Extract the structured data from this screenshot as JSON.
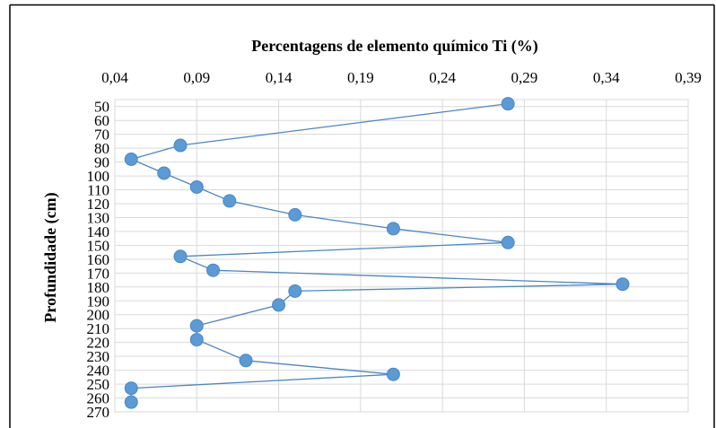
{
  "chart_data": {
    "type": "scatter",
    "title": "Percentagens de elemento químico  Ti (%)",
    "xlabel": "",
    "ylabel": "Profundidade (cm)",
    "xlim": [
      0.04,
      0.39
    ],
    "ylim": [
      270,
      45
    ],
    "x_axis_position": "top",
    "y_axis_reversed": true,
    "grid": true,
    "lines_connect_points": true,
    "series_color": "#5B9BD5",
    "line_color": "#4A86C8",
    "x_tick_labels": [
      "0,04",
      "0,09",
      "0,14",
      "0,19",
      "0,24",
      "0,29",
      "0,34",
      "0,39"
    ],
    "x_ticks": [
      0.04,
      0.09,
      0.14,
      0.19,
      0.24,
      0.29,
      0.34,
      0.39
    ],
    "y_tick_labels": [
      "50",
      "60",
      "70",
      "80",
      "90",
      "100",
      "110",
      "120",
      "130",
      "140",
      "150",
      "160",
      "170",
      "180",
      "190",
      "200",
      "210",
      "220",
      "230",
      "240",
      "250",
      "260",
      "270"
    ],
    "y_ticks": [
      50,
      60,
      70,
      80,
      90,
      100,
      110,
      120,
      130,
      140,
      150,
      160,
      170,
      180,
      190,
      200,
      210,
      220,
      230,
      240,
      250,
      260,
      270
    ],
    "series": [
      {
        "x": [
          0.28,
          0.08,
          0.05,
          0.07,
          0.09,
          0.11,
          0.15,
          0.21,
          0.28,
          0.08,
          0.1,
          0.35,
          0.15,
          0.14,
          0.09,
          0.09,
          0.12,
          0.21,
          0.05,
          0.05
        ],
        "y": [
          48,
          78,
          88,
          98,
          108,
          118,
          128,
          138,
          148,
          158,
          168,
          178,
          183,
          193,
          208,
          218,
          233,
          243,
          253,
          263
        ]
      }
    ]
  }
}
